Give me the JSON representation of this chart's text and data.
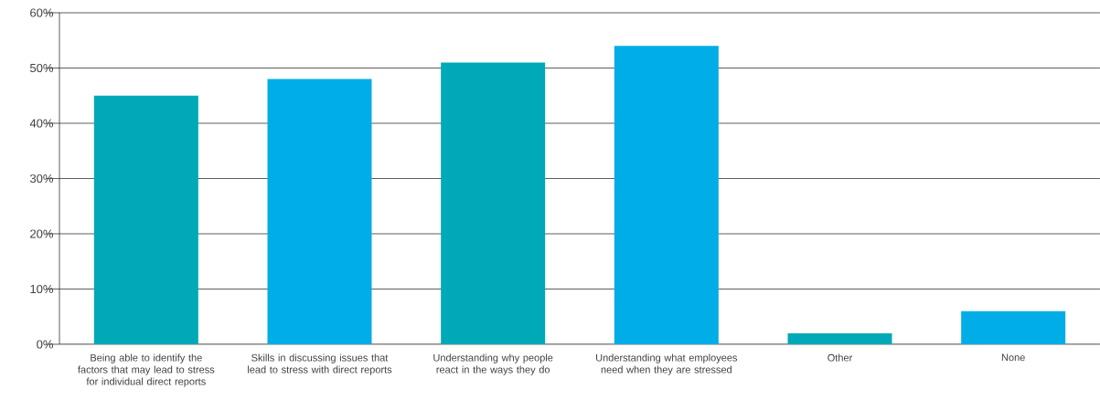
{
  "chart_data": {
    "type": "bar",
    "categories": [
      "Being able to identify the factors that may lead to stress for individual direct reports",
      "Skills in discussing issues that lead to stress with direct reports",
      "Understanding why people react in the ways they do",
      "Understanding what employees need when they are stressed",
      "Other",
      "None"
    ],
    "values": [
      45,
      48,
      51,
      54,
      2,
      6
    ],
    "colors": [
      "#00a9b7",
      "#00ade6",
      "#00a9b7",
      "#00ade6",
      "#00a9b7",
      "#00ade6"
    ],
    "ylim": [
      0,
      60
    ],
    "yticks": [
      {
        "value": 0,
        "label": "0%"
      },
      {
        "value": 10,
        "label": "10%"
      },
      {
        "value": 20,
        "label": "20%"
      },
      {
        "value": 30,
        "label": "30%"
      },
      {
        "value": 40,
        "label": "40%"
      },
      {
        "value": 50,
        "label": "50%"
      },
      {
        "value": 60,
        "label": "60%"
      }
    ],
    "grid": "y"
  }
}
